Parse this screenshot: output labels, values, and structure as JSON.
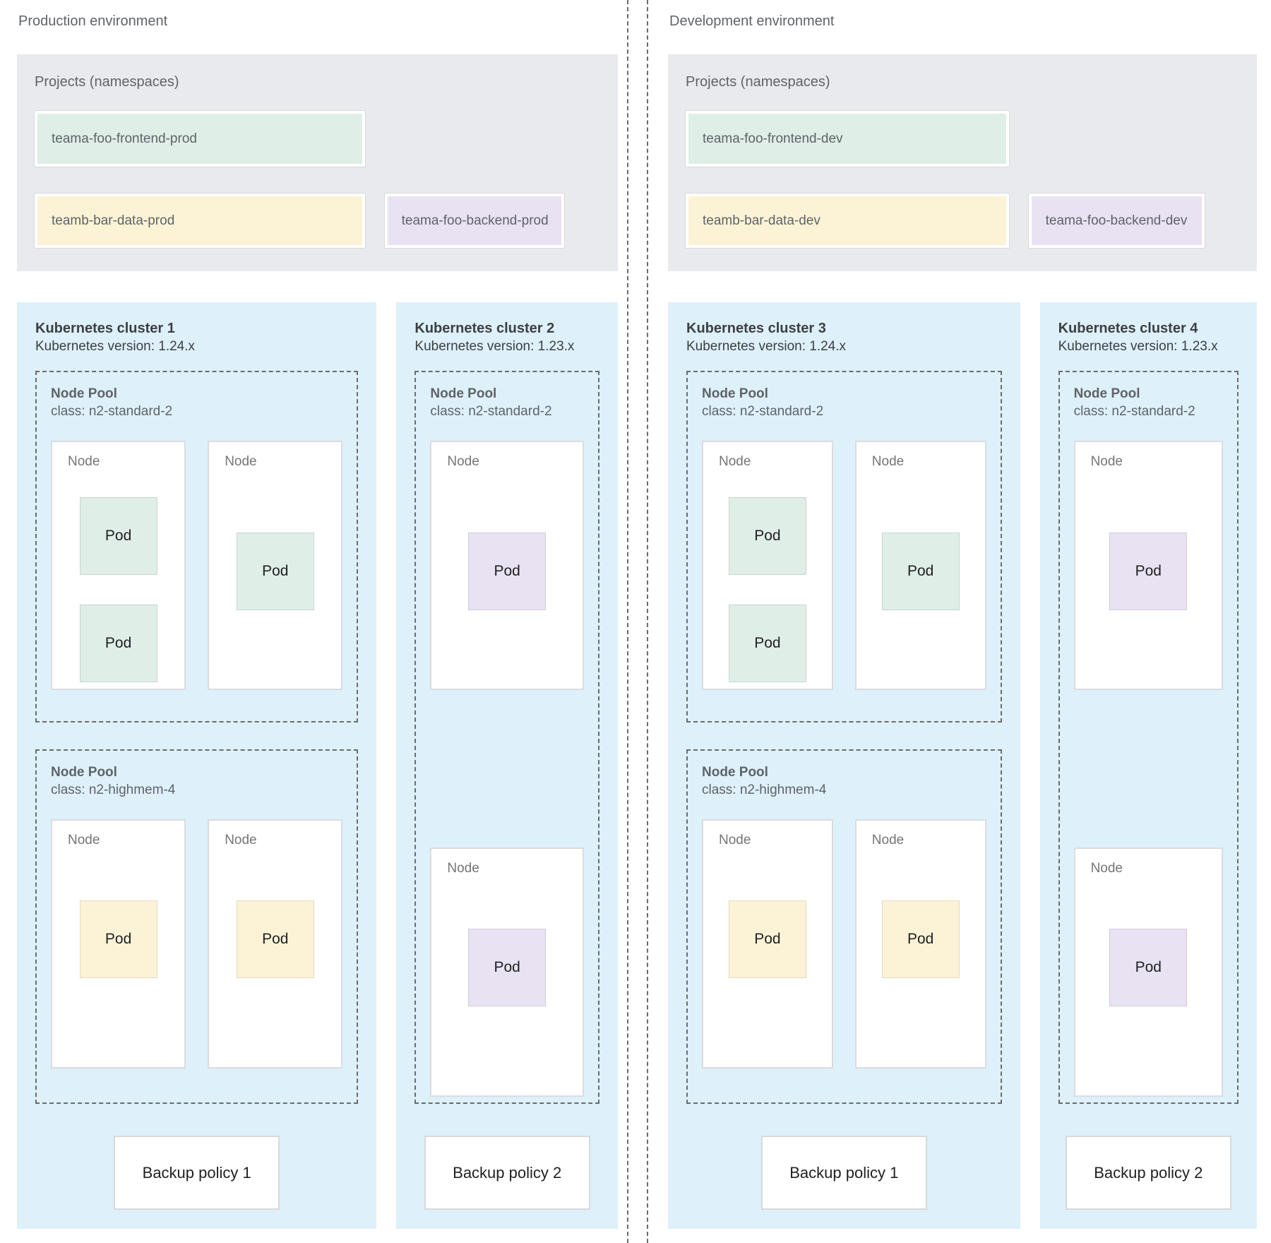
{
  "labels": {
    "node": "Node",
    "pod": "Pod"
  },
  "colors": {
    "cluster_bg": "#def0fa",
    "projects_bg": "#e8eaed",
    "namespace_green": "#dfeee7",
    "namespace_yellow": "#fcf3d6",
    "namespace_purple": "#e9e2f3",
    "dashed_border": "#6b6b6b",
    "node_border": "#dadce0",
    "text_gray": "#5f6368",
    "text_dark": "#202124"
  },
  "environments": [
    {
      "label": "Production environment",
      "projects": {
        "title": "Projects (namespaces)",
        "namespaces": [
          {
            "name": "teama-foo-frontend-prod",
            "color": "green"
          },
          {
            "name": "teamb-bar-data-prod",
            "color": "yellow"
          },
          {
            "name": "teama-foo-backend-prod",
            "color": "purple"
          }
        ]
      },
      "clusters": [
        {
          "title": "Kubernetes cluster 1",
          "version": "Kubernetes version: 1.24.x",
          "pools": [
            {
              "name": "Node Pool",
              "class": "class: n2-standard-2"
            },
            {
              "name": "Node Pool",
              "class": "class: n2-highmem-4"
            }
          ],
          "backup": "Backup policy 1"
        },
        {
          "title": "Kubernetes cluster 2",
          "version": "Kubernetes version: 1.23.x",
          "pools": [
            {
              "name": "Node Pool",
              "class": "class: n2-standard-2"
            }
          ],
          "backup": "Backup policy 2"
        }
      ]
    },
    {
      "label": "Development environment",
      "projects": {
        "title": "Projects (namespaces)",
        "namespaces": [
          {
            "name": "teama-foo-frontend-dev",
            "color": "green"
          },
          {
            "name": "teamb-bar-data-dev",
            "color": "yellow"
          },
          {
            "name": "teama-foo-backend-dev",
            "color": "purple"
          }
        ]
      },
      "clusters": [
        {
          "title": "Kubernetes cluster 3",
          "version": "Kubernetes version: 1.24.x",
          "pools": [
            {
              "name": "Node Pool",
              "class": "class: n2-standard-2"
            },
            {
              "name": "Node Pool",
              "class": "class: n2-highmem-4"
            }
          ],
          "backup": "Backup policy 1"
        },
        {
          "title": "Kubernetes cluster 4",
          "version": "Kubernetes version: 1.23.x",
          "pools": [
            {
              "name": "Node Pool",
              "class": "class: n2-standard-2"
            }
          ],
          "backup": "Backup policy 2"
        }
      ]
    }
  ]
}
